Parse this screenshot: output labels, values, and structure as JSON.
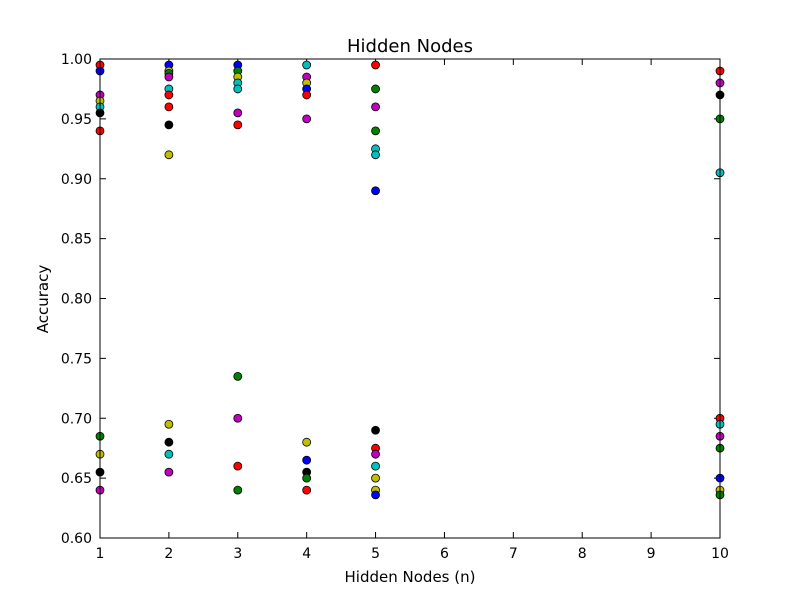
{
  "chart_data": {
    "type": "scatter",
    "title": "Hidden Nodes",
    "xlabel": "Hidden Nodes  (n)",
    "ylabel": "Accuracy",
    "xlim": [
      1,
      10
    ],
    "ylim": [
      0.6,
      1.0
    ],
    "xticks": [
      "1",
      "2",
      "3",
      "4",
      "5",
      "6",
      "7",
      "8",
      "9",
      "10"
    ],
    "yticks": [
      "0.60",
      "0.65",
      "0.70",
      "0.75",
      "0.80",
      "0.85",
      "0.90",
      "0.95",
      "1.00"
    ],
    "grid": false,
    "colors": {
      "blue": "#0000ff",
      "green": "#008000",
      "red": "#ff0000",
      "cyan": "#00bfbf",
      "magenta": "#bf00bf",
      "yellow": "#bfbf00",
      "black": "#000000"
    },
    "points": [
      {
        "x": 1,
        "y": 0.995,
        "color": "red"
      },
      {
        "x": 1,
        "y": 0.99,
        "color": "blue"
      },
      {
        "x": 1,
        "y": 0.97,
        "color": "magenta"
      },
      {
        "x": 1,
        "y": 0.965,
        "color": "yellow"
      },
      {
        "x": 1,
        "y": 0.96,
        "color": "cyan"
      },
      {
        "x": 1,
        "y": 0.955,
        "color": "black"
      },
      {
        "x": 1,
        "y": 0.94,
        "color": "red"
      },
      {
        "x": 1,
        "y": 0.685,
        "color": "green"
      },
      {
        "x": 1,
        "y": 0.67,
        "color": "yellow"
      },
      {
        "x": 1,
        "y": 0.655,
        "color": "black"
      },
      {
        "x": 1,
        "y": 0.64,
        "color": "magenta"
      },
      {
        "x": 2,
        "y": 0.995,
        "color": "blue"
      },
      {
        "x": 2,
        "y": 0.99,
        "color": "yellow"
      },
      {
        "x": 2,
        "y": 0.988,
        "color": "green"
      },
      {
        "x": 2,
        "y": 0.985,
        "color": "magenta"
      },
      {
        "x": 2,
        "y": 0.975,
        "color": "cyan"
      },
      {
        "x": 2,
        "y": 0.97,
        "color": "red"
      },
      {
        "x": 2,
        "y": 0.96,
        "color": "red"
      },
      {
        "x": 2,
        "y": 0.945,
        "color": "black"
      },
      {
        "x": 2,
        "y": 0.92,
        "color": "yellow"
      },
      {
        "x": 2,
        "y": 0.695,
        "color": "yellow"
      },
      {
        "x": 2,
        "y": 0.68,
        "color": "black"
      },
      {
        "x": 2,
        "y": 0.67,
        "color": "cyan"
      },
      {
        "x": 2,
        "y": 0.655,
        "color": "magenta"
      },
      {
        "x": 3,
        "y": 0.995,
        "color": "blue"
      },
      {
        "x": 3,
        "y": 0.99,
        "color": "green"
      },
      {
        "x": 3,
        "y": 0.985,
        "color": "yellow"
      },
      {
        "x": 3,
        "y": 0.98,
        "color": "cyan"
      },
      {
        "x": 3,
        "y": 0.975,
        "color": "cyan"
      },
      {
        "x": 3,
        "y": 0.955,
        "color": "magenta"
      },
      {
        "x": 3,
        "y": 0.945,
        "color": "red"
      },
      {
        "x": 3,
        "y": 0.735,
        "color": "green"
      },
      {
        "x": 3,
        "y": 0.7,
        "color": "magenta"
      },
      {
        "x": 3,
        "y": 0.66,
        "color": "red"
      },
      {
        "x": 3,
        "y": 0.64,
        "color": "green"
      },
      {
        "x": 4,
        "y": 0.995,
        "color": "cyan"
      },
      {
        "x": 4,
        "y": 0.985,
        "color": "magenta"
      },
      {
        "x": 4,
        "y": 0.98,
        "color": "yellow"
      },
      {
        "x": 4,
        "y": 0.975,
        "color": "blue"
      },
      {
        "x": 4,
        "y": 0.97,
        "color": "red"
      },
      {
        "x": 4,
        "y": 0.95,
        "color": "magenta"
      },
      {
        "x": 4,
        "y": 0.68,
        "color": "yellow"
      },
      {
        "x": 4,
        "y": 0.665,
        "color": "blue"
      },
      {
        "x": 4,
        "y": 0.655,
        "color": "black"
      },
      {
        "x": 4,
        "y": 0.65,
        "color": "green"
      },
      {
        "x": 4,
        "y": 0.64,
        "color": "red"
      },
      {
        "x": 5,
        "y": 0.995,
        "color": "red"
      },
      {
        "x": 5,
        "y": 0.975,
        "color": "green"
      },
      {
        "x": 5,
        "y": 0.96,
        "color": "magenta"
      },
      {
        "x": 5,
        "y": 0.94,
        "color": "green"
      },
      {
        "x": 5,
        "y": 0.925,
        "color": "cyan"
      },
      {
        "x": 5,
        "y": 0.92,
        "color": "cyan"
      },
      {
        "x": 5,
        "y": 0.89,
        "color": "blue"
      },
      {
        "x": 5,
        "y": 0.69,
        "color": "black"
      },
      {
        "x": 5,
        "y": 0.675,
        "color": "red"
      },
      {
        "x": 5,
        "y": 0.67,
        "color": "magenta"
      },
      {
        "x": 5,
        "y": 0.66,
        "color": "cyan"
      },
      {
        "x": 5,
        "y": 0.65,
        "color": "yellow"
      },
      {
        "x": 5,
        "y": 0.64,
        "color": "yellow"
      },
      {
        "x": 5,
        "y": 0.636,
        "color": "blue"
      },
      {
        "x": 10,
        "y": 0.99,
        "color": "red"
      },
      {
        "x": 10,
        "y": 0.98,
        "color": "magenta"
      },
      {
        "x": 10,
        "y": 0.97,
        "color": "black"
      },
      {
        "x": 10,
        "y": 0.95,
        "color": "green"
      },
      {
        "x": 10,
        "y": 0.905,
        "color": "cyan"
      },
      {
        "x": 10,
        "y": 0.7,
        "color": "red"
      },
      {
        "x": 10,
        "y": 0.695,
        "color": "cyan"
      },
      {
        "x": 10,
        "y": 0.685,
        "color": "magenta"
      },
      {
        "x": 10,
        "y": 0.675,
        "color": "green"
      },
      {
        "x": 10,
        "y": 0.65,
        "color": "blue"
      },
      {
        "x": 10,
        "y": 0.64,
        "color": "yellow"
      },
      {
        "x": 10,
        "y": 0.636,
        "color": "green"
      }
    ]
  }
}
